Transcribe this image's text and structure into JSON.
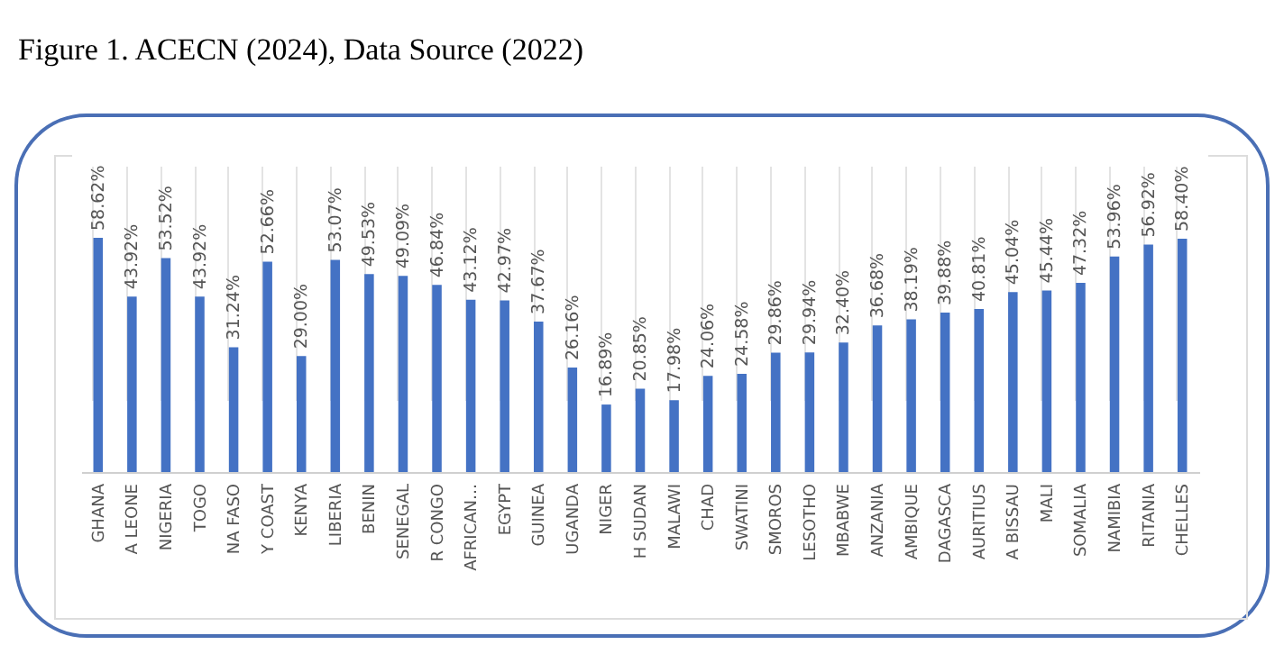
{
  "chart_data": {
    "type": "bar",
    "title": "Figure 1. ACECN (2024), Data Source (2022)",
    "categories": [
      "GHANA",
      "A LEONE",
      "NIGERIA",
      "TOGO",
      "NA FASO",
      "Y COAST",
      "KENYA",
      "LIBERIA",
      "BENIN",
      "SENEGAL",
      "R CONGO",
      "AFRICAN…",
      "EGYPT",
      "GUINEA",
      "UGANDA",
      "NIGER",
      "H SUDAN",
      "MALAWI",
      "CHAD",
      "SWATINI",
      "SMOROS",
      "LESOTHO",
      "MBABWE",
      "ANZANIA",
      "AMBIQUE",
      "DAGASCA",
      "AURITIUS",
      "A BISSAU",
      "MALI",
      "SOMALIA",
      "NAMIBIA",
      "RITANIA",
      "CHELLES"
    ],
    "values": [
      58.62,
      43.92,
      53.52,
      43.92,
      31.24,
      52.66,
      29.0,
      53.07,
      49.53,
      49.09,
      46.84,
      43.12,
      42.97,
      37.67,
      26.16,
      16.89,
      20.85,
      17.98,
      24.06,
      24.58,
      29.86,
      29.94,
      32.4,
      36.68,
      38.19,
      39.88,
      40.81,
      45.04,
      45.44,
      47.32,
      53.96,
      56.92,
      58.4
    ],
    "value_labels": [
      "58.62%",
      "43.92%",
      "53.52%",
      "43.92%",
      "31.24%",
      "52.66%",
      "29.00%",
      "53.07%",
      "49.53%",
      "49.09%",
      "46.84%",
      "43.12%",
      "42.97%",
      "37.67%",
      "26.16%",
      "16.89%",
      "20.85%",
      "17.98%",
      "24.06%",
      "24.58%",
      "29.86%",
      "29.94%",
      "32.40%",
      "36.68%",
      "38.19%",
      "39.88%",
      "40.81%",
      "45.04%",
      "45.44%",
      "47.32%",
      "53.96%",
      "56.92%",
      "58.40%"
    ],
    "color": "#4472c4",
    "grid": "x"
  }
}
